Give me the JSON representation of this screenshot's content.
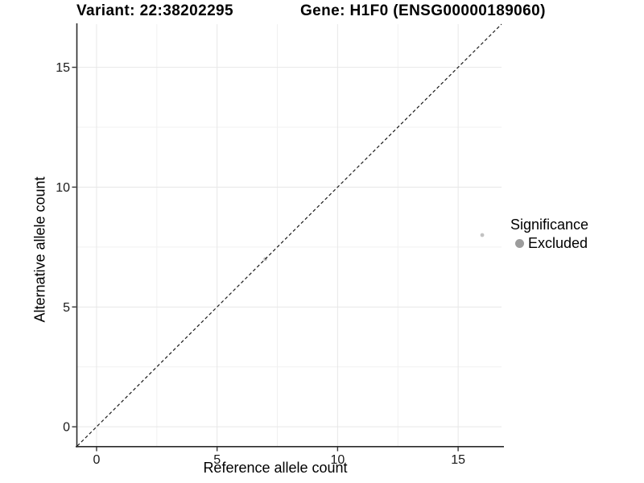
{
  "titles": {
    "left": "Variant: 22:38202295",
    "right": "Gene: H1F0 (ENSG00000189060)"
  },
  "legend": {
    "title": "Significance",
    "items": [
      {
        "label": "Excluded",
        "color": "#9c9c9c"
      }
    ]
  },
  "chart_data": {
    "type": "scatter",
    "title": "Variant: 22:38202295   Gene: H1F0 (ENSG00000189060)",
    "xlabel": "Reference allele count",
    "ylabel": "Alternative allele count",
    "xlim": [
      -0.8,
      16.8
    ],
    "ylim": [
      -0.8,
      16.8
    ],
    "xticks": [
      0,
      5,
      10,
      15
    ],
    "yticks": [
      0,
      5,
      10,
      15
    ],
    "minor_xticks": [
      2.5,
      7.5,
      12.5
    ],
    "minor_yticks": [
      2.5,
      7.5,
      12.5
    ],
    "grid": "major and minor, very light gray",
    "legend_position": "right",
    "reference_line": {
      "type": "identity y=x",
      "style": "dashed",
      "color": "#1a1a1a"
    },
    "series": [
      {
        "name": "Excluded",
        "color": "#c2c2c2",
        "points": [
          {
            "x": 7,
            "y": 7
          },
          {
            "x": 16,
            "y": 8
          }
        ]
      }
    ]
  },
  "colors": {
    "background": "#ffffff",
    "grid_major": "#e7e7e7",
    "grid_minor": "#f1f1f1",
    "axis_line": "#2b2b2b",
    "tick_mark": "#333333",
    "tick_label": "#1a1a1a",
    "point": "#c2c2c2",
    "legend_dot": "#9c9c9c"
  }
}
